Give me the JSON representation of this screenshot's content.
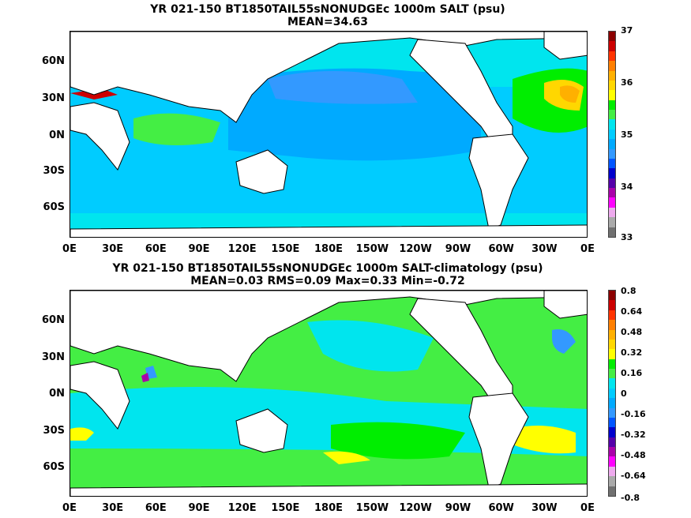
{
  "panels": [
    {
      "title_line1": "YR 021-150 BT1850TAIL55sNONUDGEc 1000m SALT (psu)",
      "title_line2": "MEAN=34.63",
      "colorbar_labels": [
        "37",
        "36",
        "35",
        "34",
        "33"
      ],
      "colorbar_colors": [
        "#8b0000",
        "#cc0000",
        "#ff3300",
        "#ff7f00",
        "#ffb000",
        "#ffd700",
        "#ffff00",
        "#00ee00",
        "#44ee44",
        "#00e5ee",
        "#00ccff",
        "#00aaff",
        "#3399ff",
        "#0055ff",
        "#0000cc",
        "#5500aa",
        "#aa00aa",
        "#ff00ff",
        "#eeaaee",
        "#aaaaaa",
        "#707070"
      ]
    },
    {
      "title_line1": "YR 021-150 BT1850TAIL55sNONUDGEc 1000m SALT-climatology (psu)",
      "title_line2": "MEAN=0.03   RMS=0.09   Max=0.33   Min=-0.72",
      "colorbar_labels": [
        "0.8",
        "0.64",
        "0.48",
        "0.32",
        "0.16",
        "0",
        "-0.16",
        "-0.32",
        "-0.48",
        "-0.64",
        "-0.8"
      ],
      "colorbar_colors": [
        "#8b0000",
        "#cc0000",
        "#ff3300",
        "#ff7f00",
        "#ffb000",
        "#ffd700",
        "#ffff00",
        "#00ee00",
        "#44ee44",
        "#00e5ee",
        "#00ccff",
        "#00aaff",
        "#3399ff",
        "#0055ff",
        "#0000cc",
        "#5500aa",
        "#aa00aa",
        "#ff00ff",
        "#eeaaee",
        "#aaaaaa",
        "#707070"
      ]
    }
  ],
  "lat_labels": [
    "60N",
    "30N",
    "0N",
    "30S",
    "60S"
  ],
  "lon_labels": [
    "0E",
    "30E",
    "60E",
    "90E",
    "120E",
    "150E",
    "180E",
    "150W",
    "120W",
    "90W",
    "60W",
    "30W",
    "0E"
  ]
}
